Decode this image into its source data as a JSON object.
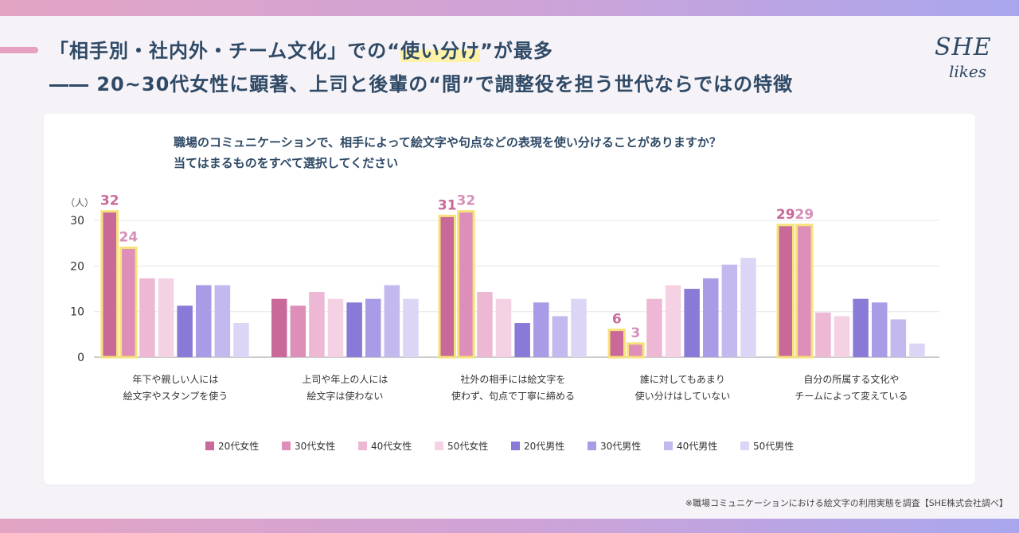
{
  "headline": {
    "line1_pre": "「相手別・社内外・チーム文化」での“",
    "line1_highlight": "使い分け",
    "line1_post": "”が最多",
    "line2": "―― 20~30代女性に顕著、上司と後輩の“間”で調整役を担う世代ならではの特徴"
  },
  "logo": {
    "line1": "SHE",
    "line2": "likes"
  },
  "question": {
    "line1": "職場のコミュニケーションで、相手によって絵文字や句点などの表現を使い分けることがありますか？",
    "line2": "当てはまるものをすべて選択してください"
  },
  "footnote": "※職場コミュニケーションにおける絵文字の利用実態を調査【SHE株式会社調べ】",
  "colors": {
    "accent": "#e6a1c0",
    "highlight_border": "#f7e27a",
    "headline": "#2f4a66",
    "label_dark": "#c9699a",
    "label_light": "#d690b8"
  },
  "chart_data": {
    "type": "bar",
    "unit_label": "（人）",
    "ylim": [
      0,
      33
    ],
    "yticks": [
      0,
      10,
      20,
      30
    ],
    "grid": true,
    "legend_position": "bottom",
    "categories": [
      [
        "年下や親しい人には",
        "絵文字やスタンプを使う"
      ],
      [
        "上司や年上の人には",
        "絵文字は使わない"
      ],
      [
        "社外の相手には絵文字を",
        "使わず、句点で丁寧に締める"
      ],
      [
        "誰に対してもあまり",
        "使い分けはしていない"
      ],
      [
        "自分の所属する文化や",
        "チームによって変えている"
      ]
    ],
    "series": [
      {
        "name": "20代女性",
        "color": "#c9699a",
        "values": [
          32,
          12.8,
          31,
          6,
          29
        ]
      },
      {
        "name": "30代女性",
        "color": "#dd8fb9",
        "values": [
          24,
          11.3,
          32,
          3,
          29
        ]
      },
      {
        "name": "40代女性",
        "color": "#ecb8d4",
        "values": [
          17.3,
          14.3,
          14.3,
          12.8,
          9.8
        ]
      },
      {
        "name": "50代女性",
        "color": "#f4d2e3",
        "values": [
          17.3,
          12.8,
          12.8,
          15.8,
          9.0
        ]
      },
      {
        "name": "20代男性",
        "color": "#8a7ad8",
        "values": [
          11.3,
          12.0,
          7.5,
          15.0,
          12.8
        ]
      },
      {
        "name": "30代男性",
        "color": "#a99be6",
        "values": [
          15.8,
          12.8,
          12.0,
          17.3,
          12.0
        ]
      },
      {
        "name": "40代男性",
        "color": "#c3b9ef",
        "values": [
          15.8,
          15.8,
          9.0,
          20.3,
          8.3
        ]
      },
      {
        "name": "50代男性",
        "color": "#dcd5f5",
        "values": [
          7.5,
          12.8,
          12.8,
          21.8,
          3.0
        ]
      }
    ],
    "highlighted": [
      {
        "category": 0,
        "series": 0,
        "label": "32"
      },
      {
        "category": 0,
        "series": 1,
        "label": "24"
      },
      {
        "category": 2,
        "series": 0,
        "label": "31"
      },
      {
        "category": 2,
        "series": 1,
        "label": "32"
      },
      {
        "category": 3,
        "series": 0,
        "label": "6"
      },
      {
        "category": 3,
        "series": 1,
        "label": "3"
      },
      {
        "category": 4,
        "series": 0,
        "label": "29"
      },
      {
        "category": 4,
        "series": 1,
        "label": "29"
      }
    ]
  }
}
